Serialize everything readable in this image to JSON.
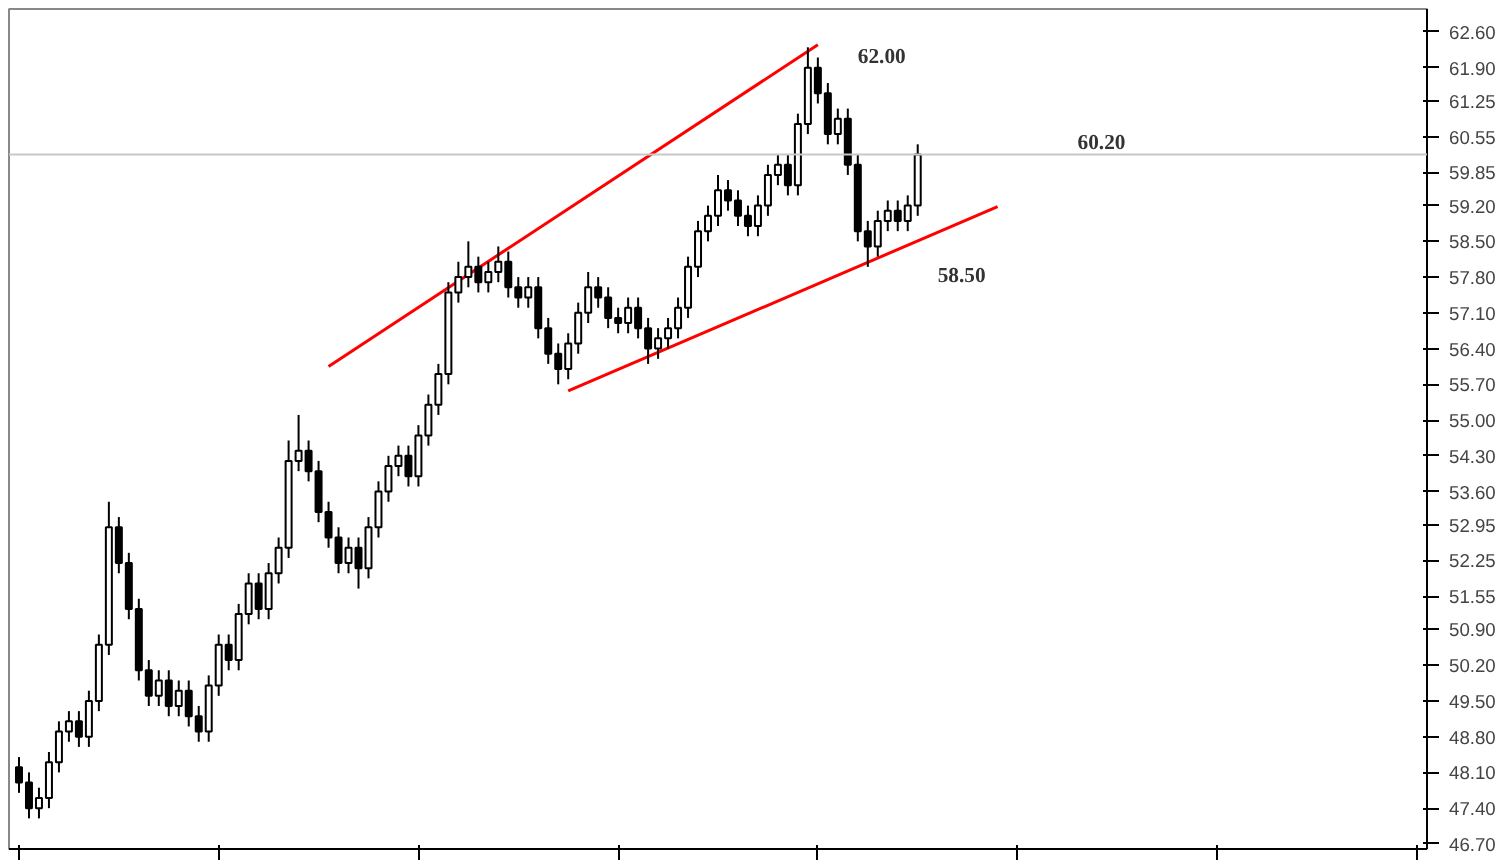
{
  "chart_data": {
    "type": "candlestick",
    "categories": [
      null,
      null,
      null,
      null,
      null,
      null,
      null,
      null,
      null,
      null,
      null,
      null,
      null,
      null,
      null,
      null,
      null,
      null,
      null,
      null,
      null,
      null,
      null,
      null,
      null,
      null,
      null,
      null,
      null,
      null,
      null,
      null,
      null,
      null,
      null,
      null,
      null,
      null,
      null,
      null,
      null,
      null,
      null,
      null,
      null,
      null,
      null,
      null,
      null,
      null,
      null,
      null,
      null,
      null,
      null,
      null,
      null,
      null,
      null,
      null,
      null,
      null,
      null,
      null,
      null,
      null,
      null,
      null,
      null,
      null,
      null,
      null,
      null,
      null,
      null,
      null,
      null,
      null,
      null,
      null,
      null,
      null,
      null,
      null,
      null,
      null,
      null,
      null,
      null,
      null,
      null,
      null,
      null,
      null,
      null,
      null,
      null,
      null,
      null,
      null,
      null,
      null,
      null,
      null,
      null,
      null,
      null,
      null,
      null,
      null,
      null,
      null,
      null,
      null,
      null,
      null,
      null,
      null,
      null,
      null,
      null,
      null,
      null,
      null,
      null,
      null,
      null,
      null,
      null,
      null,
      null,
      null,
      null,
      null,
      null,
      null,
      null,
      null,
      null,
      null,
      null
    ],
    "ohlc": [
      [
        48.2,
        48.4,
        47.7,
        47.9
      ],
      [
        47.9,
        48.1,
        47.2,
        47.4
      ],
      [
        47.4,
        47.8,
        47.2,
        47.6
      ],
      [
        47.6,
        48.5,
        47.4,
        48.3
      ],
      [
        48.3,
        49.1,
        48.1,
        48.9
      ],
      [
        48.9,
        49.3,
        48.7,
        49.1
      ],
      [
        49.1,
        49.3,
        48.6,
        48.8
      ],
      [
        48.8,
        49.7,
        48.6,
        49.5
      ],
      [
        49.5,
        50.8,
        49.3,
        50.6
      ],
      [
        50.6,
        53.4,
        50.4,
        52.9
      ],
      [
        52.9,
        53.1,
        52.0,
        52.2
      ],
      [
        52.2,
        52.4,
        51.1,
        51.3
      ],
      [
        51.3,
        51.5,
        49.9,
        50.1
      ],
      [
        50.1,
        50.3,
        49.4,
        49.6
      ],
      [
        49.6,
        50.1,
        49.4,
        49.9
      ],
      [
        49.9,
        50.1,
        49.2,
        49.4
      ],
      [
        49.4,
        49.9,
        49.2,
        49.7
      ],
      [
        49.7,
        49.9,
        49.0,
        49.2
      ],
      [
        49.2,
        49.4,
        48.7,
        48.9
      ],
      [
        48.9,
        50.0,
        48.7,
        49.8
      ],
      [
        49.8,
        50.8,
        49.6,
        50.6
      ],
      [
        50.6,
        50.8,
        50.1,
        50.3
      ],
      [
        50.3,
        51.4,
        50.1,
        51.2
      ],
      [
        51.2,
        52.0,
        51.0,
        51.8
      ],
      [
        51.8,
        52.0,
        51.1,
        51.3
      ],
      [
        51.3,
        52.2,
        51.1,
        52.0
      ],
      [
        52.0,
        52.7,
        51.8,
        52.5
      ],
      [
        52.5,
        54.6,
        52.3,
        54.2
      ],
      [
        54.2,
        55.1,
        54.0,
        54.4
      ],
      [
        54.4,
        54.6,
        53.8,
        54.0
      ],
      [
        54.0,
        54.2,
        53.0,
        53.2
      ],
      [
        53.2,
        53.4,
        52.5,
        52.7
      ],
      [
        52.7,
        52.9,
        52.0,
        52.2
      ],
      [
        52.2,
        52.7,
        52.0,
        52.5
      ],
      [
        52.5,
        52.7,
        51.7,
        52.1
      ],
      [
        52.1,
        53.1,
        51.9,
        52.9
      ],
      [
        52.9,
        53.8,
        52.7,
        53.6
      ],
      [
        53.6,
        54.3,
        53.4,
        54.1
      ],
      [
        54.1,
        54.5,
        53.9,
        54.3
      ],
      [
        54.3,
        54.5,
        53.7,
        53.9
      ],
      [
        53.9,
        54.9,
        53.7,
        54.7
      ],
      [
        54.7,
        55.5,
        54.5,
        55.3
      ],
      [
        55.3,
        56.1,
        55.1,
        55.9
      ],
      [
        55.9,
        57.7,
        55.7,
        57.5
      ],
      [
        57.5,
        58.1,
        57.3,
        57.8
      ],
      [
        57.8,
        58.5,
        57.6,
        58.0
      ],
      [
        58.0,
        58.2,
        57.5,
        57.7
      ],
      [
        57.7,
        58.1,
        57.5,
        57.9
      ],
      [
        57.9,
        58.4,
        57.7,
        58.1
      ],
      [
        58.1,
        58.3,
        57.4,
        57.6
      ],
      [
        57.6,
        57.8,
        57.2,
        57.4
      ],
      [
        57.4,
        57.8,
        57.2,
        57.6
      ],
      [
        57.6,
        57.8,
        56.6,
        56.8
      ],
      [
        56.8,
        57.0,
        56.1,
        56.3
      ],
      [
        56.3,
        56.5,
        55.7,
        56.0
      ],
      [
        56.0,
        56.7,
        55.8,
        56.5
      ],
      [
        56.5,
        57.3,
        56.3,
        57.1
      ],
      [
        57.1,
        57.9,
        56.9,
        57.6
      ],
      [
        57.6,
        57.8,
        57.2,
        57.4
      ],
      [
        57.4,
        57.6,
        56.8,
        57.0
      ],
      [
        57.0,
        57.2,
        56.7,
        56.9
      ],
      [
        56.9,
        57.4,
        56.7,
        57.2
      ],
      [
        57.2,
        57.4,
        56.6,
        56.8
      ],
      [
        56.8,
        57.0,
        56.1,
        56.4
      ],
      [
        56.4,
        56.8,
        56.2,
        56.6
      ],
      [
        56.6,
        57.0,
        56.4,
        56.8
      ],
      [
        56.8,
        57.4,
        56.6,
        57.2
      ],
      [
        57.2,
        58.2,
        57.0,
        58.0
      ],
      [
        58.0,
        58.9,
        57.8,
        58.7
      ],
      [
        58.7,
        59.2,
        58.5,
        59.0
      ],
      [
        59.0,
        59.8,
        58.8,
        59.5
      ],
      [
        59.5,
        59.7,
        59.1,
        59.3
      ],
      [
        59.3,
        59.5,
        58.8,
        59.0
      ],
      [
        59.0,
        59.2,
        58.6,
        58.8
      ],
      [
        58.8,
        59.4,
        58.6,
        59.2
      ],
      [
        59.2,
        60.0,
        59.0,
        59.8
      ],
      [
        59.8,
        60.2,
        59.6,
        60.0
      ],
      [
        60.0,
        60.2,
        59.4,
        59.6
      ],
      [
        59.6,
        61.0,
        59.4,
        60.8
      ],
      [
        60.8,
        62.3,
        60.6,
        61.9
      ],
      [
        61.9,
        62.1,
        61.2,
        61.4
      ],
      [
        61.4,
        61.6,
        60.4,
        60.6
      ],
      [
        60.6,
        61.1,
        60.4,
        60.9
      ],
      [
        60.9,
        61.1,
        59.8,
        60.0
      ],
      [
        60.0,
        60.2,
        58.5,
        58.7
      ],
      [
        58.7,
        58.9,
        58.0,
        58.4
      ],
      [
        58.4,
        59.1,
        58.2,
        58.9
      ],
      [
        58.9,
        59.3,
        58.7,
        59.1
      ],
      [
        59.1,
        59.3,
        58.7,
        58.9
      ],
      [
        58.9,
        59.4,
        58.7,
        59.2
      ],
      [
        59.2,
        60.4,
        59.0,
        60.2
      ],
      null,
      null,
      null,
      null,
      null,
      null,
      null,
      null,
      null,
      null,
      null,
      null,
      null,
      null,
      null,
      null,
      null,
      null,
      null,
      null,
      null,
      null,
      null,
      null,
      null,
      null,
      null,
      null,
      null,
      null,
      null,
      null,
      null,
      null,
      null,
      null,
      null,
      null,
      null,
      null,
      null,
      null,
      null,
      null,
      null,
      null,
      null,
      null,
      null,
      null
    ],
    "series": [
      {
        "type": "line",
        "color": "#ff0000",
        "values": [
          null,
          null,
          null,
          null,
          null,
          null,
          null,
          null,
          null,
          null,
          null,
          null,
          null,
          null,
          null,
          null,
          null,
          null,
          null,
          null,
          null,
          null,
          null,
          null,
          null,
          null,
          null,
          null,
          null,
          null,
          null,
          56.05,
          null,
          null,
          null,
          null,
          null,
          null,
          null,
          null,
          null,
          null,
          null,
          null,
          null,
          null,
          null,
          null,
          null,
          null,
          null,
          null,
          null,
          null,
          null,
          null,
          null,
          null,
          null,
          null,
          null,
          null,
          null,
          null,
          null,
          null,
          null,
          null,
          null,
          null,
          null,
          null,
          null,
          null,
          null,
          null,
          null,
          null,
          null,
          null,
          62.35,
          null,
          null,
          null,
          null,
          null,
          null,
          null,
          null,
          null,
          null,
          null,
          null,
          null,
          null,
          null,
          null,
          null,
          null,
          null,
          null,
          null,
          null,
          null,
          null,
          null,
          null,
          null,
          null,
          null,
          null,
          null,
          null,
          null,
          null,
          null,
          null,
          null,
          null,
          null,
          null,
          null,
          null,
          null,
          null,
          null,
          null,
          null,
          null,
          null,
          null,
          null,
          null,
          null,
          null,
          null,
          null,
          null,
          null,
          null,
          null
        ]
      },
      {
        "type": "line",
        "color": "#ff0000",
        "values": [
          null,
          null,
          null,
          null,
          null,
          null,
          null,
          null,
          null,
          null,
          null,
          null,
          null,
          null,
          null,
          null,
          null,
          null,
          null,
          null,
          null,
          null,
          null,
          null,
          null,
          null,
          null,
          null,
          null,
          null,
          null,
          null,
          null,
          null,
          null,
          null,
          null,
          null,
          null,
          null,
          null,
          null,
          null,
          null,
          null,
          null,
          null,
          null,
          null,
          null,
          null,
          null,
          null,
          null,
          null,
          55.57,
          null,
          null,
          null,
          null,
          null,
          null,
          null,
          null,
          null,
          null,
          null,
          null,
          null,
          null,
          null,
          null,
          null,
          null,
          null,
          null,
          null,
          null,
          null,
          null,
          null,
          null,
          null,
          null,
          null,
          null,
          null,
          null,
          null,
          null,
          null,
          null,
          null,
          null,
          null,
          null,
          null,
          null,
          59.18,
          null,
          null,
          null,
          null,
          null,
          null,
          null,
          null,
          null,
          null,
          null,
          null,
          null,
          null,
          null,
          null,
          null,
          null,
          null,
          null,
          null,
          null,
          null,
          null,
          null,
          null,
          null,
          null,
          null,
          null,
          null,
          null,
          null,
          null,
          null,
          null,
          null,
          null,
          null,
          null,
          null,
          null
        ]
      }
    ],
    "ylim": [
      46.6,
      63.05
    ],
    "yticks": [
      {
        "value": 46.7,
        "label": "46.70"
      },
      {
        "value": 47.4,
        "label": "47.40"
      },
      {
        "value": 48.1,
        "label": "48.10"
      },
      {
        "value": 48.8,
        "label": "48.80"
      },
      {
        "value": 49.5,
        "label": "49.50"
      },
      {
        "value": 50.2,
        "label": "50.20"
      },
      {
        "value": 50.9,
        "label": "50.90"
      },
      51.55,
      52.25,
      52.95,
      {
        "value": 53.6,
        "label": "53.60"
      },
      {
        "value": 54.3,
        "label": "54.30"
      },
      {
        "value": 55.0,
        "label": "55.00"
      },
      {
        "value": 55.7,
        "label": "55.70"
      },
      {
        "value": 56.4,
        "label": "56.40"
      },
      {
        "value": 57.1,
        "label": "57.10"
      },
      {
        "value": 57.8,
        "label": "57.80"
      },
      {
        "value": 58.5,
        "label": "58.50"
      },
      {
        "value": 59.2,
        "label": "59.20"
      },
      59.85,
      60.55,
      61.25,
      {
        "value": 61.9,
        "label": "61.90"
      },
      {
        "value": 62.6,
        "label": "62.60"
      }
    ],
    "ref_lines": [
      {
        "axis": "y",
        "value": 60.2,
        "label": "60.20",
        "color": "#c8c8c8"
      }
    ],
    "annotations": [
      "62.00",
      "58.50"
    ],
    "grid": false,
    "tick_labels": "y"
  }
}
